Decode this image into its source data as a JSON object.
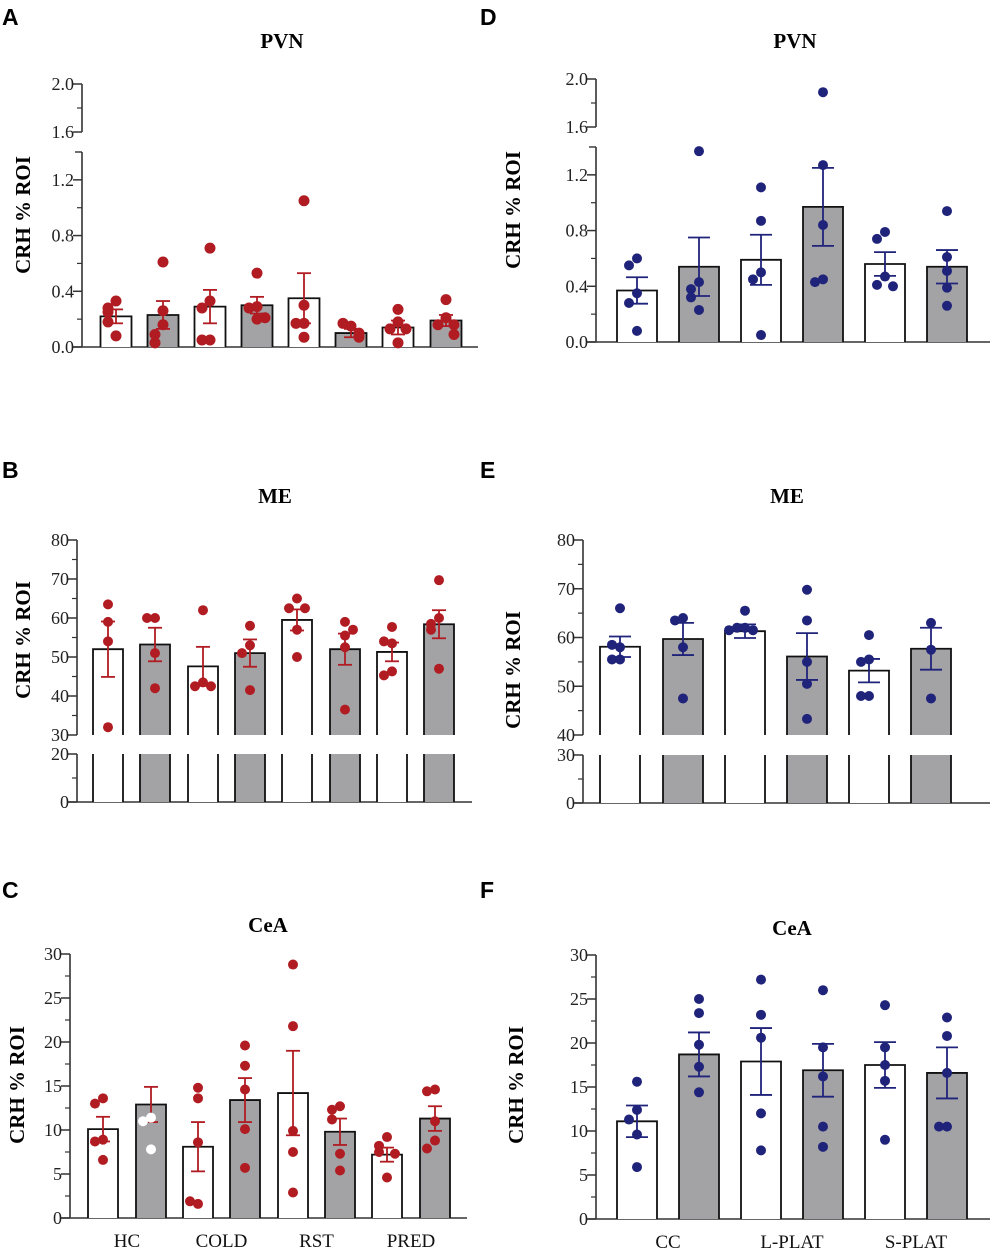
{
  "colors": {
    "red": "#b01c22",
    "blue": "#1f237a",
    "gray_bar": "#a3a3a6",
    "white_bar": "#ffffff"
  },
  "chart_data": [
    {
      "type": "bar",
      "id": "A",
      "letter": "A",
      "title": "PVN",
      "ylabel": "CRH % ROI",
      "color": "red",
      "ticks": [
        {
          "v": 0,
          "label": "0.0"
        },
        {
          "v": 0.4,
          "label": "0.4"
        },
        {
          "v": 0.8,
          "label": "0.8"
        },
        {
          "v": 1.2,
          "label": "1.2"
        },
        {
          "v": 1.6,
          "label": "1.6"
        },
        {
          "v": 2.0,
          "label": "2.0"
        }
      ],
      "axis_break": [
        1.4,
        1.6
      ],
      "ylim": [
        0,
        2.0
      ],
      "categories": [],
      "bars": [
        {
          "fill": "white",
          "mean": 0.22,
          "sem": 0.05,
          "points": [
            0.33,
            0.28,
            0.25,
            0.18,
            0.08
          ]
        },
        {
          "fill": "gray",
          "mean": 0.23,
          "sem": 0.1,
          "points": [
            0.61,
            0.26,
            0.16,
            0.09,
            0.03
          ]
        },
        {
          "fill": "white",
          "mean": 0.29,
          "sem": 0.12,
          "points": [
            0.71,
            0.33,
            0.28,
            0.05,
            0.05
          ]
        },
        {
          "fill": "gray",
          "mean": 0.3,
          "sem": 0.06,
          "points": [
            0.53,
            0.29,
            0.28,
            0.2,
            0.21
          ]
        },
        {
          "fill": "white",
          "mean": 0.35,
          "sem": 0.18,
          "points": [
            1.05,
            0.3,
            0.17,
            0.17,
            0.07
          ]
        },
        {
          "fill": "gray",
          "mean": 0.1,
          "sem": 0.03,
          "points": [
            0.15,
            0.17,
            0.1,
            0.08,
            0.07
          ]
        },
        {
          "fill": "white",
          "mean": 0.14,
          "sem": 0.05,
          "points": [
            0.27,
            0.18,
            0.13,
            0.13,
            0.03
          ]
        },
        {
          "fill": "gray",
          "mean": 0.19,
          "sem": 0.04,
          "points": [
            0.34,
            0.21,
            0.16,
            0.16,
            0.09
          ]
        }
      ]
    },
    {
      "type": "bar",
      "id": "B",
      "letter": "B",
      "title": "ME",
      "ylabel": "CRH % ROI",
      "color": "red",
      "ticks": [
        {
          "v": 0,
          "label": "0"
        },
        {
          "v": 20,
          "label": "20"
        },
        {
          "v": 30,
          "label": "30"
        },
        {
          "v": 40,
          "label": "40"
        },
        {
          "v": 50,
          "label": "50"
        },
        {
          "v": 60,
          "label": "60"
        },
        {
          "v": 70,
          "label": "70"
        },
        {
          "v": 80,
          "label": "80"
        }
      ],
      "axis_break": [
        20,
        30
      ],
      "ylim": [
        0,
        80
      ],
      "categories": [],
      "bars": [
        {
          "fill": "white",
          "mean": 52.0,
          "sem": 7.1,
          "points": [
            63.5,
            59,
            54,
            32
          ]
        },
        {
          "fill": "gray",
          "mean": 53.2,
          "sem": 4.3,
          "points": [
            60,
            60,
            51,
            42
          ]
        },
        {
          "fill": "white",
          "mean": 47.6,
          "sem": 5.0,
          "points": [
            62,
            43.5,
            42.5,
            42.5
          ]
        },
        {
          "fill": "gray",
          "mean": 51.0,
          "sem": 3.5,
          "points": [
            58,
            53,
            51,
            41.5
          ]
        },
        {
          "fill": "white",
          "mean": 59.5,
          "sem": 2.7,
          "points": [
            65,
            62.5,
            62.5,
            57,
            50
          ]
        },
        {
          "fill": "gray",
          "mean": 52.0,
          "sem": 4.0,
          "points": [
            59,
            55.5,
            52.5,
            57,
            36.5
          ]
        },
        {
          "fill": "white",
          "mean": 51.3,
          "sem": 2.4,
          "points": [
            57.7,
            53.5,
            54,
            46.3,
            45.3
          ]
        },
        {
          "fill": "gray",
          "mean": 58.4,
          "sem": 3.6,
          "points": [
            69.7,
            60,
            58.5,
            57,
            47
          ]
        }
      ]
    },
    {
      "type": "bar",
      "id": "C",
      "letter": "C",
      "title": "CeA",
      "ylabel": "CRH % ROI",
      "color": "red",
      "ticks": [
        {
          "v": 0,
          "label": "0"
        },
        {
          "v": 5,
          "label": "5"
        },
        {
          "v": 10,
          "label": "10"
        },
        {
          "v": 15,
          "label": "15"
        },
        {
          "v": 20,
          "label": "20"
        },
        {
          "v": 25,
          "label": "25"
        },
        {
          "v": 30,
          "label": "30"
        }
      ],
      "axis_break": null,
      "ylim": [
        0,
        30
      ],
      "categories": [
        "HC",
        "COLD",
        "RST",
        "PRED"
      ],
      "bars": [
        {
          "fill": "white",
          "mean": 10.1,
          "sem": 1.4,
          "points": [
            13.6,
            13,
            8.9,
            8.7,
            6.6
          ]
        },
        {
          "fill": "gray",
          "mean": 12.9,
          "sem": 2.0,
          "points": [
            11.4,
            11,
            7.8
          ],
          "point_color": "white"
        },
        {
          "fill": "white",
          "mean": 8.1,
          "sem": 2.8,
          "points": [
            14.8,
            13.6,
            8.6,
            1.6,
            1.9
          ]
        },
        {
          "fill": "gray",
          "mean": 13.4,
          "sem": 2.5,
          "points": [
            19.6,
            17.3,
            14.6,
            10.1,
            5.7
          ]
        },
        {
          "fill": "white",
          "mean": 14.2,
          "sem": 4.8,
          "points": [
            28.8,
            21.8,
            9.9,
            7.5,
            2.9
          ]
        },
        {
          "fill": "gray",
          "mean": 9.8,
          "sem": 1.5,
          "points": [
            12.7,
            12.3,
            11.2,
            7.3,
            5.4
          ]
        },
        {
          "fill": "white",
          "mean": 7.2,
          "sem": 0.8,
          "points": [
            9.2,
            8.2,
            7.5,
            7.3,
            4.6
          ]
        },
        {
          "fill": "gray",
          "mean": 11.3,
          "sem": 1.4,
          "points": [
            14.6,
            14.4,
            11,
            8.8,
            7.9
          ]
        }
      ]
    },
    {
      "type": "bar",
      "id": "D",
      "letter": "D",
      "title": "PVN",
      "ylabel": "CRH % ROI",
      "color": "blue",
      "ticks": [
        {
          "v": 0,
          "label": "0.0"
        },
        {
          "v": 0.4,
          "label": "0.4"
        },
        {
          "v": 0.8,
          "label": "0.8"
        },
        {
          "v": 1.2,
          "label": "1.2"
        },
        {
          "v": 1.6,
          "label": "1.6"
        },
        {
          "v": 2.0,
          "label": "2.0"
        }
      ],
      "axis_break": [
        1.4,
        1.6
      ],
      "ylim": [
        0,
        2.0
      ],
      "categories": [],
      "bars": [
        {
          "fill": "white",
          "mean": 0.37,
          "sem": 0.095,
          "points": [
            0.6,
            0.55,
            0.35,
            0.28,
            0.08
          ]
        },
        {
          "fill": "gray",
          "mean": 0.54,
          "sem": 0.21,
          "points": [
            1.37,
            0.43,
            0.38,
            0.32,
            0.23
          ]
        },
        {
          "fill": "white",
          "mean": 0.59,
          "sem": 0.18,
          "points": [
            1.11,
            0.87,
            0.5,
            0.45,
            0.05
          ]
        },
        {
          "fill": "gray",
          "mean": 0.97,
          "sem": 0.28,
          "points": [
            1.89,
            1.27,
            0.84,
            0.45,
            0.43
          ]
        },
        {
          "fill": "white",
          "mean": 0.56,
          "sem": 0.085,
          "points": [
            0.79,
            0.74,
            0.47,
            0.41,
            0.4
          ]
        },
        {
          "fill": "gray",
          "mean": 0.54,
          "sem": 0.12,
          "points": [
            0.94,
            0.61,
            0.51,
            0.39,
            0.26
          ]
        }
      ]
    },
    {
      "type": "bar",
      "id": "E",
      "letter": "E",
      "title": "ME",
      "ylabel": "CRH % ROI",
      "color": "blue",
      "ticks": [
        {
          "v": 0,
          "label": "0"
        },
        {
          "v": 30,
          "label": "30"
        },
        {
          "v": 40,
          "label": "40"
        },
        {
          "v": 50,
          "label": "50"
        },
        {
          "v": 60,
          "label": "60"
        },
        {
          "v": 70,
          "label": "70"
        },
        {
          "v": 80,
          "label": "80"
        }
      ],
      "axis_break": [
        30,
        40
      ],
      "ylim": [
        0,
        80
      ],
      "categories": [],
      "bars": [
        {
          "fill": "white",
          "mean": 58.1,
          "sem": 2.1,
          "points": [
            66,
            58,
            58.5,
            55.5,
            55.5
          ]
        },
        {
          "fill": "gray",
          "mean": 59.7,
          "sem": 3.3,
          "points": [
            64,
            63.5,
            58,
            47.5
          ]
        },
        {
          "fill": "white",
          "mean": 61.3,
          "sem": 1.4,
          "points": [
            65.5,
            62,
            62,
            61.5,
            61.5
          ]
        },
        {
          "fill": "gray",
          "mean": 56.1,
          "sem": 4.8,
          "points": [
            69.8,
            63.5,
            55,
            50.5,
            43.3
          ]
        },
        {
          "fill": "white",
          "mean": 53.2,
          "sem": 2.4,
          "points": [
            60.5,
            55.5,
            55,
            48,
            48
          ]
        },
        {
          "fill": "gray",
          "mean": 57.7,
          "sem": 4.3,
          "points": [
            63,
            57.5,
            47.5
          ]
        }
      ]
    },
    {
      "type": "bar",
      "id": "F",
      "letter": "F",
      "title": "CeA",
      "ylabel": "CRH % ROI",
      "color": "blue",
      "ticks": [
        {
          "v": 0,
          "label": "0"
        },
        {
          "v": 5,
          "label": "5"
        },
        {
          "v": 10,
          "label": "10"
        },
        {
          "v": 15,
          "label": "15"
        },
        {
          "v": 20,
          "label": "20"
        },
        {
          "v": 25,
          "label": "25"
        },
        {
          "v": 30,
          "label": "30"
        }
      ],
      "axis_break": null,
      "ylim": [
        0,
        30
      ],
      "categories": [
        "CC",
        "L-PLAT",
        "S-PLAT"
      ],
      "bars": [
        {
          "fill": "white",
          "mean": 11.1,
          "sem": 1.8,
          "points": [
            15.6,
            12.4,
            11.3,
            9.6,
            5.9
          ]
        },
        {
          "fill": "gray",
          "mean": 18.7,
          "sem": 2.5,
          "points": [
            25,
            23.4,
            19.8,
            17.3,
            14.4
          ]
        },
        {
          "fill": "white",
          "mean": 17.9,
          "sem": 3.8,
          "points": [
            27.2,
            23.2,
            20.6,
            12,
            7.8
          ]
        },
        {
          "fill": "gray",
          "mean": 16.9,
          "sem": 3.0,
          "points": [
            26,
            19.5,
            16.2,
            10.5,
            8.2
          ]
        },
        {
          "fill": "white",
          "mean": 17.5,
          "sem": 2.6,
          "points": [
            24.3,
            19.5,
            17.5,
            15.7,
            9
          ]
        },
        {
          "fill": "gray",
          "mean": 16.6,
          "sem": 2.9,
          "points": [
            22.9,
            20.8,
            16.6,
            10.5,
            10.5
          ]
        }
      ]
    }
  ]
}
